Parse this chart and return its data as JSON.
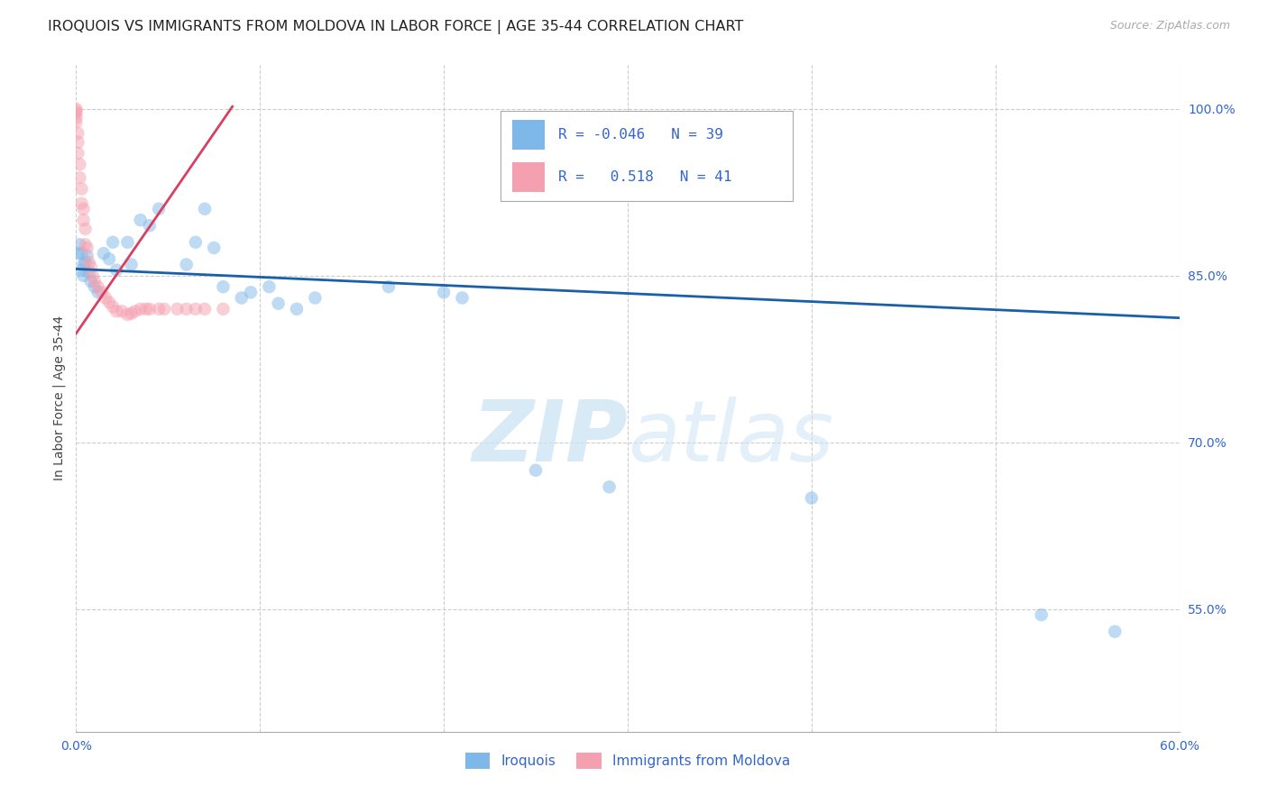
{
  "title": "IROQUOIS VS IMMIGRANTS FROM MOLDOVA IN LABOR FORCE | AGE 35-44 CORRELATION CHART",
  "source": "Source: ZipAtlas.com",
  "ylabel": "In Labor Force | Age 35-44",
  "xlim": [
    0.0,
    0.6
  ],
  "ylim": [
    0.44,
    1.04
  ],
  "xticks": [
    0.0,
    0.1,
    0.2,
    0.3,
    0.4,
    0.5,
    0.6
  ],
  "yticks_right": [
    1.0,
    0.85,
    0.7,
    0.55
  ],
  "grid_color": "#cccccc",
  "watermark": "ZIPatlas",
  "iroquois_color": "#7eb8e8",
  "moldova_color": "#f5a0b0",
  "iroquois_line_color": "#1a5faa",
  "moldova_line_color": "#d94060",
  "iroquois_x": [
    0.001,
    0.002,
    0.003,
    0.003,
    0.004,
    0.004,
    0.005,
    0.006,
    0.007,
    0.008,
    0.01,
    0.012,
    0.015,
    0.018,
    0.02,
    0.022,
    0.028,
    0.03,
    0.035,
    0.04,
    0.045,
    0.06,
    0.065,
    0.07,
    0.075,
    0.08,
    0.09,
    0.095,
    0.105,
    0.11,
    0.12,
    0.13,
    0.17,
    0.2,
    0.21,
    0.25,
    0.29,
    0.4,
    0.525,
    0.565
  ],
  "iroquois_y": [
    0.87,
    0.878,
    0.87,
    0.855,
    0.85,
    0.86,
    0.862,
    0.868,
    0.853,
    0.845,
    0.84,
    0.835,
    0.87,
    0.865,
    0.88,
    0.855,
    0.88,
    0.86,
    0.9,
    0.895,
    0.91,
    0.86,
    0.88,
    0.91,
    0.875,
    0.84,
    0.83,
    0.835,
    0.84,
    0.825,
    0.82,
    0.83,
    0.84,
    0.835,
    0.83,
    0.675,
    0.66,
    0.65,
    0.545,
    0.53
  ],
  "moldova_x": [
    0.0,
    0.0,
    0.0,
    0.0,
    0.0,
    0.001,
    0.001,
    0.001,
    0.002,
    0.002,
    0.003,
    0.003,
    0.004,
    0.004,
    0.005,
    0.005,
    0.006,
    0.007,
    0.008,
    0.009,
    0.01,
    0.012,
    0.014,
    0.016,
    0.018,
    0.02,
    0.022,
    0.025,
    0.028,
    0.03,
    0.032,
    0.035,
    0.038,
    0.04,
    0.045,
    0.048,
    0.055,
    0.06,
    0.065,
    0.07,
    0.08
  ],
  "moldova_y": [
    1.0,
    0.998,
    0.996,
    0.992,
    0.988,
    0.978,
    0.97,
    0.96,
    0.95,
    0.938,
    0.928,
    0.915,
    0.91,
    0.9,
    0.892,
    0.878,
    0.875,
    0.862,
    0.858,
    0.85,
    0.845,
    0.84,
    0.835,
    0.83,
    0.826,
    0.822,
    0.818,
    0.818,
    0.815,
    0.816,
    0.818,
    0.82,
    0.82,
    0.82,
    0.82,
    0.82,
    0.82,
    0.82,
    0.82,
    0.82,
    0.82
  ],
  "iroquois_trend_x0": 0.0,
  "iroquois_trend_y0": 0.856,
  "iroquois_trend_x1": 0.6,
  "iroquois_trend_y1": 0.812,
  "moldova_trend_x0": 0.0,
  "moldova_trend_y0": 0.798,
  "moldova_trend_x1": 0.085,
  "moldova_trend_y1": 1.002,
  "dot_size": 110,
  "dot_alpha": 0.5,
  "line_width": 2.0,
  "title_fontsize": 11.5,
  "axis_label_fontsize": 10,
  "tick_fontsize": 10,
  "legend_fontsize": 12
}
